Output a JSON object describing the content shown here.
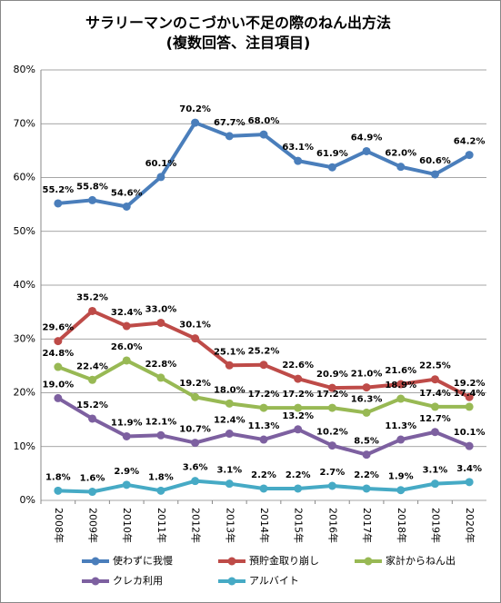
{
  "chart_data": {
    "type": "line",
    "title": "サラリーマンのこづかい不足の際のねん出方法",
    "subtitle": "(複数回答、注目項目)",
    "categories": [
      "2008年",
      "2009年",
      "2010年",
      "2011年",
      "2012年",
      "2013年",
      "2014年",
      "2015年",
      "2016年",
      "2017年",
      "2018年",
      "2019年",
      "2020年"
    ],
    "ylim": [
      0,
      80
    ],
    "yticks": [
      {
        "value": 0,
        "label": "0%"
      },
      {
        "value": 10,
        "label": "10%"
      },
      {
        "value": 20,
        "label": "20%"
      },
      {
        "value": 30,
        "label": "30%"
      },
      {
        "value": 40,
        "label": "40%"
      },
      {
        "value": 50,
        "label": "50%"
      },
      {
        "value": 60,
        "label": "60%"
      },
      {
        "value": 70,
        "label": "70%"
      },
      {
        "value": 80,
        "label": "80%"
      }
    ],
    "grid": true,
    "series": [
      {
        "name": "使わずに我慢",
        "color": "#4a7ebb",
        "values": [
          55.2,
          55.8,
          54.6,
          60.1,
          70.2,
          67.7,
          68.0,
          63.1,
          61.9,
          64.9,
          62.0,
          60.6,
          64.2
        ],
        "value_labels": [
          "55.2%",
          "55.8%",
          "54.6%",
          "60.1%",
          "70.2%",
          "67.7%",
          "68.0%",
          "63.1%",
          "61.9%",
          "64.9%",
          "62.0%",
          "60.6%",
          "64.2%"
        ]
      },
      {
        "name": "預貯金取り崩し",
        "color": "#be4b48",
        "values": [
          29.6,
          35.2,
          32.4,
          33.0,
          30.1,
          25.1,
          25.2,
          22.6,
          20.9,
          21.0,
          21.6,
          22.5,
          19.2
        ],
        "value_labels": [
          "29.6%",
          "35.2%",
          "32.4%",
          "33.0%",
          "30.1%",
          "25.1%",
          "25.2%",
          "22.6%",
          "20.9%",
          "21.0%",
          "21.6%",
          "22.5%",
          "19.2%"
        ]
      },
      {
        "name": "家計からねん出",
        "color": "#98b954",
        "values": [
          24.8,
          22.4,
          26.0,
          22.8,
          19.2,
          18.0,
          17.2,
          17.2,
          17.2,
          16.3,
          18.9,
          17.4,
          17.4
        ],
        "value_labels": [
          "24.8%",
          "22.4%",
          "26.0%",
          "22.8%",
          "19.2%",
          "18.0%",
          "17.2%",
          "17.2%",
          "17.2%",
          "16.3%",
          "18.9%",
          "17.4%",
          "17.4%"
        ]
      },
      {
        "name": "クレカ利用",
        "color": "#7d60a0",
        "values": [
          19.0,
          15.2,
          11.9,
          12.1,
          10.7,
          12.4,
          11.3,
          13.2,
          10.2,
          8.5,
          11.3,
          12.7,
          10.1
        ],
        "value_labels": [
          "19.0%",
          "15.2%",
          "11.9%",
          "12.1%",
          "10.7%",
          "12.4%",
          "11.3%",
          "13.2%",
          "10.2%",
          "8.5%",
          "11.3%",
          "12.7%",
          "10.1%"
        ]
      },
      {
        "name": "アルバイト",
        "color": "#46aac5",
        "values": [
          1.8,
          1.6,
          2.9,
          1.8,
          3.6,
          3.1,
          2.2,
          2.2,
          2.7,
          2.2,
          1.9,
          3.1,
          3.4
        ],
        "value_labels": [
          "1.8%",
          "1.6%",
          "2.9%",
          "1.8%",
          "3.6%",
          "3.1%",
          "2.2%",
          "2.2%",
          "2.7%",
          "2.2%",
          "1.9%",
          "3.1%",
          "3.4%"
        ]
      }
    ]
  }
}
